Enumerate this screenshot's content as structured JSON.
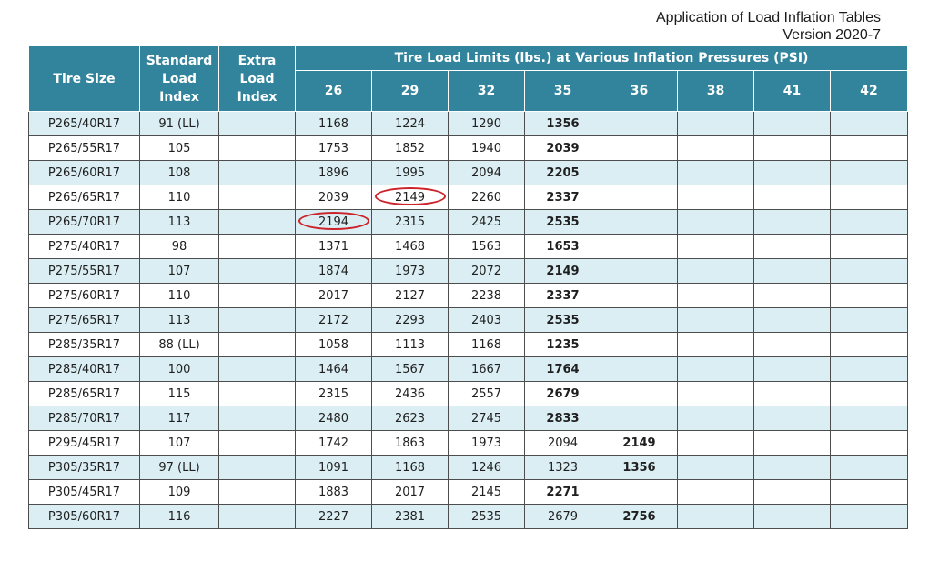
{
  "header": {
    "title": "Application of Load Inflation Tables",
    "version": "Version 2020-7"
  },
  "table": {
    "col_tire_size": "Tire Size",
    "col_standard_load_index": "Standard Load Index",
    "col_extra_load_index": "Extra Load Index",
    "col_group_title": "Tire Load Limits (lbs.) at Various Inflation Pressures (PSI)",
    "psi_columns": [
      "26",
      "29",
      "32",
      "35",
      "36",
      "38",
      "41",
      "42"
    ],
    "rows": [
      {
        "size": "P265/40R17",
        "sli": "91 (LL)",
        "xli": "",
        "loads": [
          "1168",
          "1224",
          "1290",
          "1356",
          "",
          "",
          "",
          ""
        ],
        "bold": [
          3
        ],
        "circled": []
      },
      {
        "size": "P265/55R17",
        "sli": "105",
        "xli": "",
        "loads": [
          "1753",
          "1852",
          "1940",
          "2039",
          "",
          "",
          "",
          ""
        ],
        "bold": [
          3
        ],
        "circled": []
      },
      {
        "size": "P265/60R17",
        "sli": "108",
        "xli": "",
        "loads": [
          "1896",
          "1995",
          "2094",
          "2205",
          "",
          "",
          "",
          ""
        ],
        "bold": [
          3
        ],
        "circled": []
      },
      {
        "size": "P265/65R17",
        "sli": "110",
        "xli": "",
        "loads": [
          "2039",
          "2149",
          "2260",
          "2337",
          "",
          "",
          "",
          ""
        ],
        "bold": [
          3
        ],
        "circled": [
          1
        ]
      },
      {
        "size": "P265/70R17",
        "sli": "113",
        "xli": "",
        "loads": [
          "2194",
          "2315",
          "2425",
          "2535",
          "",
          "",
          "",
          ""
        ],
        "bold": [
          3
        ],
        "circled": [
          0
        ]
      },
      {
        "size": "P275/40R17",
        "sli": "98",
        "xli": "",
        "loads": [
          "1371",
          "1468",
          "1563",
          "1653",
          "",
          "",
          "",
          ""
        ],
        "bold": [
          3
        ],
        "circled": []
      },
      {
        "size": "P275/55R17",
        "sli": "107",
        "xli": "",
        "loads": [
          "1874",
          "1973",
          "2072",
          "2149",
          "",
          "",
          "",
          ""
        ],
        "bold": [
          3
        ],
        "circled": []
      },
      {
        "size": "P275/60R17",
        "sli": "110",
        "xli": "",
        "loads": [
          "2017",
          "2127",
          "2238",
          "2337",
          "",
          "",
          "",
          ""
        ],
        "bold": [
          3
        ],
        "circled": []
      },
      {
        "size": "P275/65R17",
        "sli": "113",
        "xli": "",
        "loads": [
          "2172",
          "2293",
          "2403",
          "2535",
          "",
          "",
          "",
          ""
        ],
        "bold": [
          3
        ],
        "circled": []
      },
      {
        "size": "P285/35R17",
        "sli": "88 (LL)",
        "xli": "",
        "loads": [
          "1058",
          "1113",
          "1168",
          "1235",
          "",
          "",
          "",
          ""
        ],
        "bold": [
          3
        ],
        "circled": []
      },
      {
        "size": "P285/40R17",
        "sli": "100",
        "xli": "",
        "loads": [
          "1464",
          "1567",
          "1667",
          "1764",
          "",
          "",
          "",
          ""
        ],
        "bold": [
          3
        ],
        "circled": []
      },
      {
        "size": "P285/65R17",
        "sli": "115",
        "xli": "",
        "loads": [
          "2315",
          "2436",
          "2557",
          "2679",
          "",
          "",
          "",
          ""
        ],
        "bold": [
          3
        ],
        "circled": []
      },
      {
        "size": "P285/70R17",
        "sli": "117",
        "xli": "",
        "loads": [
          "2480",
          "2623",
          "2745",
          "2833",
          "",
          "",
          "",
          ""
        ],
        "bold": [
          3
        ],
        "circled": []
      },
      {
        "size": "P295/45R17",
        "sli": "107",
        "xli": "",
        "loads": [
          "1742",
          "1863",
          "1973",
          "2094",
          "2149",
          "",
          "",
          ""
        ],
        "bold": [
          4
        ],
        "circled": []
      },
      {
        "size": "P305/35R17",
        "sli": "97 (LL)",
        "xli": "",
        "loads": [
          "1091",
          "1168",
          "1246",
          "1323",
          "1356",
          "",
          "",
          ""
        ],
        "bold": [
          4
        ],
        "circled": []
      },
      {
        "size": "P305/45R17",
        "sli": "109",
        "xli": "",
        "loads": [
          "1883",
          "2017",
          "2145",
          "2271",
          "",
          "",
          "",
          ""
        ],
        "bold": [
          3
        ],
        "circled": []
      },
      {
        "size": "P305/60R17",
        "sli": "116",
        "xli": "",
        "loads": [
          "2227",
          "2381",
          "2535",
          "2679",
          "2756",
          "",
          "",
          ""
        ],
        "bold": [
          4
        ],
        "circled": []
      }
    ]
  },
  "colors": {
    "header_bg": "#31849b",
    "stripe_bg": "#daeef3",
    "circle_stroke": "#cc2229"
  }
}
